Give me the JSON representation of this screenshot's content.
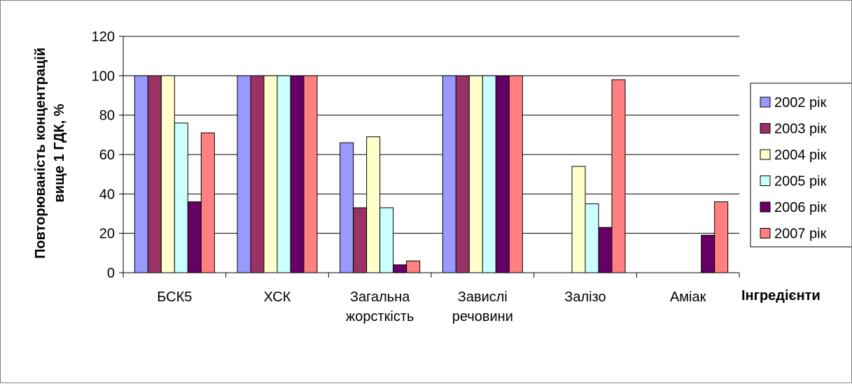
{
  "chart_data": {
    "type": "bar",
    "title": "",
    "ylabel_lines": [
      "Повторюваність концентрацій",
      "вище 1 ГДК, %"
    ],
    "xlabel": "Інгредієнти",
    "categories": [
      [
        "БСК5"
      ],
      [
        "ХСК"
      ],
      [
        "Загальна",
        "жорсткість"
      ],
      [
        "Завислі",
        "речовини"
      ],
      [
        "Залізо"
      ],
      [
        "Аміак"
      ]
    ],
    "ylim": [
      0,
      120
    ],
    "yticks": [
      "0",
      "20",
      "40",
      "60",
      "80",
      "100",
      "120"
    ],
    "grid": true,
    "legend_position": "right",
    "series": [
      {
        "name": "2002 рік",
        "color": "#9999FF",
        "values": [
          100,
          100,
          66,
          100,
          0,
          0
        ]
      },
      {
        "name": "2003 рік",
        "color": "#993366",
        "values": [
          100,
          100,
          33,
          100,
          0,
          0
        ]
      },
      {
        "name": "2004 рік",
        "color": "#FFFFCC",
        "values": [
          100,
          100,
          69,
          100,
          54,
          0
        ]
      },
      {
        "name": "2005 рік",
        "color": "#CCFFFF",
        "values": [
          76,
          100,
          33,
          100,
          35,
          0
        ]
      },
      {
        "name": "2006 рік",
        "color": "#660066",
        "values": [
          36,
          100,
          4,
          100,
          23,
          19
        ]
      },
      {
        "name": "2007 рік",
        "color": "#FF8080",
        "values": [
          71,
          100,
          6,
          100,
          98,
          36
        ]
      }
    ]
  }
}
